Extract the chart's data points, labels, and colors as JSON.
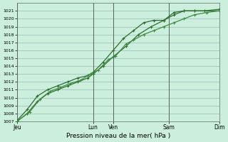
{
  "title": "",
  "xlabel": "Pression niveau de la mer( hPa )",
  "ylabel": "",
  "bg_color": "#cceedd",
  "grid_color": "#99bbbb",
  "vline_color": "#556655",
  "line_color_dark": "#2d6e2d",
  "line_color_mid": "#3d8e3d",
  "ylim": [
    1007,
    1022
  ],
  "xlim": [
    0,
    8
  ],
  "yticks": [
    1007,
    1008,
    1009,
    1010,
    1011,
    1012,
    1013,
    1014,
    1015,
    1016,
    1017,
    1018,
    1019,
    1020,
    1021
  ],
  "day_labels": [
    "Jeu",
    "Lun",
    "Ven",
    "Sam",
    "Dim"
  ],
  "day_positions": [
    0.0,
    3.0,
    3.8,
    6.0,
    8.0
  ],
  "vline_positions": [
    0.0,
    3.0,
    3.8,
    6.0,
    8.0
  ],
  "series": [
    {
      "x": [
        0.0,
        0.4,
        0.8,
        1.2,
        1.6,
        2.0,
        2.4,
        2.8,
        3.0,
        3.4,
        3.8,
        4.3,
        4.8,
        5.3,
        5.8,
        6.2,
        6.6,
        7.0,
        7.4,
        8.0
      ],
      "y": [
        1007.0,
        1008.0,
        1009.5,
        1010.5,
        1011.0,
        1011.5,
        1012.0,
        1012.5,
        1013.0,
        1014.0,
        1015.2,
        1016.5,
        1018.0,
        1019.0,
        1019.8,
        1020.5,
        1021.0,
        1021.0,
        1021.0,
        1021.2
      ],
      "color": "#2d6e2d",
      "lw": 0.9,
      "marker": "+",
      "ms": 3.5,
      "mew": 0.8
    },
    {
      "x": [
        0.0,
        0.4,
        0.8,
        1.2,
        1.6,
        2.0,
        2.4,
        2.8,
        3.0,
        3.4,
        3.8,
        4.2,
        4.6,
        5.0,
        5.4,
        5.8,
        6.2,
        6.6,
        7.0,
        8.0
      ],
      "y": [
        1007.1,
        1008.5,
        1010.2,
        1011.0,
        1011.5,
        1012.0,
        1012.5,
        1012.8,
        1013.2,
        1014.5,
        1016.0,
        1017.5,
        1018.5,
        1019.5,
        1019.8,
        1019.8,
        1020.8,
        1021.0,
        1021.0,
        1021.0
      ],
      "color": "#2d6e2d",
      "lw": 0.9,
      "marker": "+",
      "ms": 3.5,
      "mew": 0.8
    },
    {
      "x": [
        0.0,
        0.5,
        0.9,
        1.3,
        1.7,
        2.1,
        2.5,
        2.9,
        3.2,
        3.6,
        3.9,
        4.3,
        4.6,
        5.0,
        5.4,
        5.8,
        6.2,
        6.6,
        7.0,
        7.5,
        8.0
      ],
      "y": [
        1007.0,
        1008.2,
        1009.8,
        1010.8,
        1011.3,
        1011.8,
        1012.2,
        1013.0,
        1013.5,
        1014.8,
        1015.3,
        1016.8,
        1017.3,
        1018.0,
        1018.5,
        1019.0,
        1019.5,
        1020.0,
        1020.5,
        1020.8,
        1021.0
      ],
      "color": "#3d8e3d",
      "lw": 0.9,
      "marker": "+",
      "ms": 3.5,
      "mew": 0.8
    }
  ]
}
